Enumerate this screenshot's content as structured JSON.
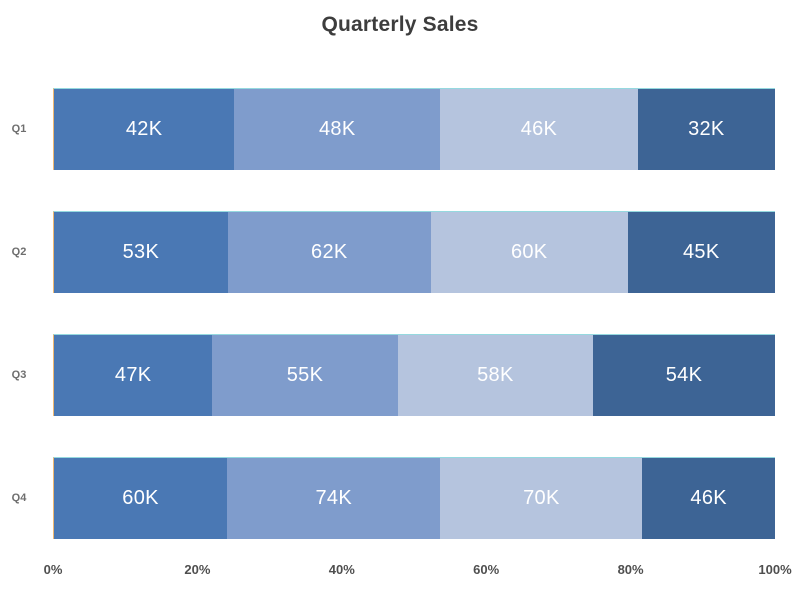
{
  "chart_data": {
    "type": "bar",
    "orientation": "horizontal",
    "stacked": true,
    "normalized": "percent-of-row-total",
    "title": "Quarterly Sales",
    "categories": [
      "Q1",
      "Q2",
      "Q3",
      "Q4"
    ],
    "palette": [
      "#4a78b4",
      "#7f9ccc",
      "#b5c4de",
      "#3d6495"
    ],
    "rows": [
      {
        "label": "Q1",
        "segments": [
          {
            "label": "42K",
            "value": 42
          },
          {
            "label": "48K",
            "value": 48
          },
          {
            "label": "46K",
            "value": 46
          },
          {
            "label": "32K",
            "value": 32
          }
        ]
      },
      {
        "label": "Q2",
        "segments": [
          {
            "label": "53K",
            "value": 53
          },
          {
            "label": "62K",
            "value": 62
          },
          {
            "label": "60K",
            "value": 60
          },
          {
            "label": "45K",
            "value": 45
          }
        ]
      },
      {
        "label": "Q3",
        "segments": [
          {
            "label": "47K",
            "value": 47
          },
          {
            "label": "55K",
            "value": 55
          },
          {
            "label": "58K",
            "value": 58
          },
          {
            "label": "54K",
            "value": 54
          }
        ]
      },
      {
        "label": "Q4",
        "segments": [
          {
            "label": "60K",
            "value": 60
          },
          {
            "label": "74K",
            "value": 74
          },
          {
            "label": "70K",
            "value": 70
          },
          {
            "label": "46K",
            "value": 46
          }
        ]
      }
    ],
    "x_ticks": [
      "0%",
      "20%",
      "40%",
      "60%",
      "80%",
      "100%"
    ],
    "xlim": [
      0,
      100
    ],
    "xlabel": "",
    "ylabel": "",
    "legend": "none",
    "grid": "off",
    "value_label_color": "#ffffff",
    "title_color": "#3d3d3d",
    "axis_label_color": "#4f4f4f",
    "category_label_color": "#6e6e6e"
  }
}
